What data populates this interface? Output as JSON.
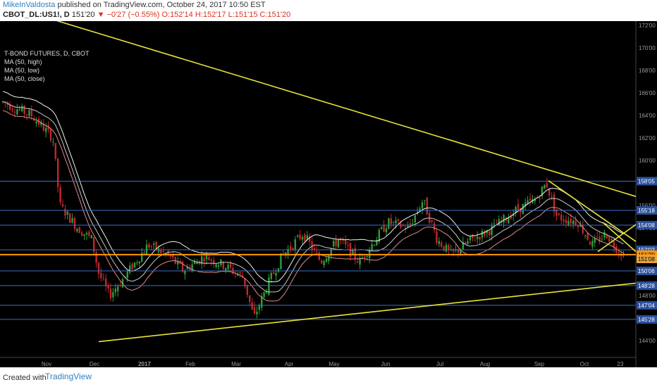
{
  "header": {
    "author": "MikeInValdosta",
    "published_text": "published on TradingView.com, October 24, 2017 10:50 EST",
    "symbol": "CBOT_DL:US1!, D",
    "last": "151'20",
    "change": "▼ −0'27 (−0.55%)",
    "ohlc": {
      "open": "O:152'14",
      "high": "H:152'17",
      "low": "L:151'15",
      "close": "C:151'20"
    }
  },
  "legend": {
    "title": "T-BOND FUTURES, D, CBOT",
    "items": [
      "MA (50, high)",
      "MA (50, low)",
      "MA (50, close)"
    ]
  },
  "price_axis": {
    "ticks": [
      "172'00",
      "170'00",
      "168'00",
      "166'00",
      "164'00",
      "162'00",
      "160'00",
      "158'00",
      "156'00",
      "154'00",
      "152'00",
      "150'00",
      "148'00",
      "146'00",
      "144'00"
    ],
    "levels": [
      {
        "label": "158'05",
        "price": 158.16,
        "type": "horizontal"
      },
      {
        "label": "155'18",
        "price": 155.56,
        "type": "horizontal"
      },
      {
        "label": "154'08",
        "price": 154.25,
        "type": "horizontal"
      },
      {
        "label": "152'02",
        "price": 152.06,
        "type": "horizontal"
      },
      {
        "label": "151'20",
        "price": 151.63,
        "type": "last"
      },
      {
        "label": "151'08",
        "price": 151.25,
        "type": "ma"
      },
      {
        "label": "150'06",
        "price": 150.19,
        "type": "horizontal"
      },
      {
        "label": "148'28",
        "price": 148.88,
        "type": "horizontal"
      },
      {
        "label": "147'04",
        "price": 147.13,
        "type": "horizontal"
      },
      {
        "label": "145'28",
        "price": 145.88,
        "type": "horizontal"
      }
    ]
  },
  "time_axis": {
    "labels": [
      "Nov",
      "Dec",
      "2017",
      "Feb",
      "Mar",
      "Apr",
      "May",
      "Jun",
      "Jul",
      "Aug",
      "Sep",
      "Oct",
      "23"
    ]
  },
  "footer": {
    "created_with": "Created with",
    "brand": "TradingView"
  },
  "colors": {
    "background": "#000000",
    "up": "#2e9e3a",
    "down": "#c0282a",
    "trendline": "#e8e23c",
    "level": "#3a6fc4",
    "last_price": "#ff9800"
  }
}
